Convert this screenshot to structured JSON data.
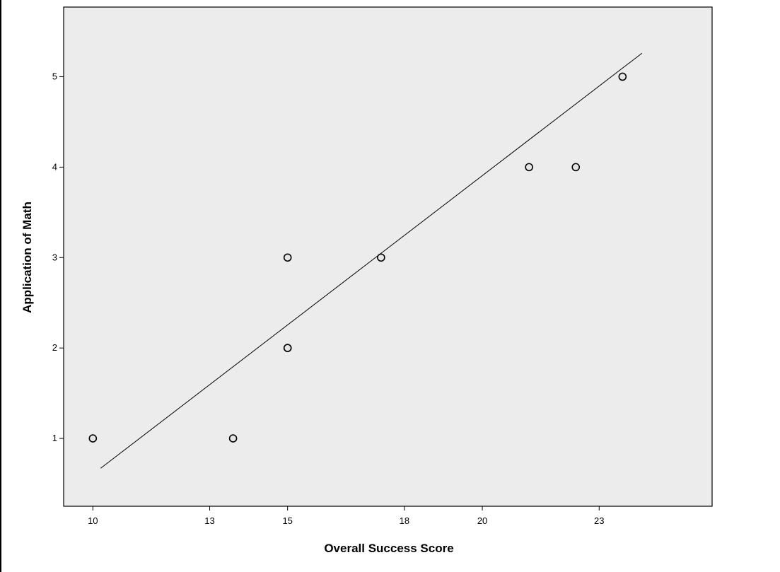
{
  "chart_data": {
    "type": "scatter",
    "title": "",
    "xlabel": "Overall Success Score",
    "ylabel": "Application of Math",
    "x_ticks": [
      10,
      13,
      15,
      18,
      20,
      23
    ],
    "y_ticks": [
      1,
      2,
      3,
      4,
      5
    ],
    "xlim": [
      9.25,
      25.9
    ],
    "ylim": [
      0.25,
      5.77
    ],
    "grid": false,
    "series": [
      {
        "points": [
          {
            "x": 10.0,
            "y": 1
          },
          {
            "x": 13.6,
            "y": 1
          },
          {
            "x": 15.0,
            "y": 3
          },
          {
            "x": 15.0,
            "y": 2
          },
          {
            "x": 15.0,
            "y": 2
          },
          {
            "x": 17.4,
            "y": 3
          },
          {
            "x": 21.2,
            "y": 4
          },
          {
            "x": 22.4,
            "y": 4
          },
          {
            "x": 23.6,
            "y": 5
          }
        ]
      }
    ],
    "fit_line": {
      "x": [
        10.2,
        24.1
      ],
      "y": [
        0.67,
        5.26
      ]
    },
    "colors": {
      "plot_background": "#ececec",
      "axes": "#000000",
      "marker_fill": "#e6e6e6",
      "marker_stroke": "#000000",
      "fit_line": "#000000"
    }
  }
}
